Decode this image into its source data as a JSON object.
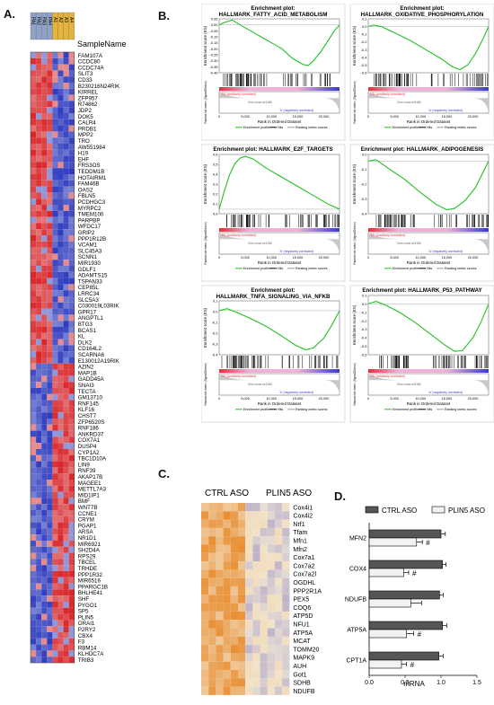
{
  "panels": {
    "a": "A.",
    "b": "B.",
    "c": "C.",
    "d": "D."
  },
  "heatmapA": {
    "header": "SampleName",
    "columns": [
      "PA1",
      "PA2",
      "PA3",
      "PA4",
      "A1",
      "A2",
      "A3",
      "A4"
    ],
    "colors": {
      "pa": "#8fa3c8",
      "a": "#e6b43a",
      "high": "#d9262a",
      "low": "#2f3cbf",
      "mid": "#f2f2f2"
    },
    "genes": [
      "FAM107A",
      "CCDC80",
      "CCDC74A",
      "SLIT3",
      "CD33",
      "B230216N24RIK",
      "KIRREL",
      "ZFP957",
      "R74862",
      "JDP2",
      "DOK5",
      "CALR4",
      "PRDB1",
      "MPP2",
      "TRO",
      "AW551984",
      "H19",
      "EHF",
      "FRS3OS",
      "TEDDM1B",
      "HOTAIRM1",
      "FAM46B",
      "OAS2",
      "FBLN5",
      "PCDHGC3",
      "MYRPC2",
      "TMEM100",
      "PARPBP",
      "WFDC17",
      "GRIP2",
      "PPP1R12B",
      "VCAM1",
      "SLC45A3",
      "SCNN1",
      "MIR1930",
      "GDLF1",
      "ADAMTS15",
      "TSPAN33",
      "CEP85L",
      "LRRC34",
      "SLC5A3",
      "C030019L03RIK",
      "GPR17",
      "ANGPTL1",
      "BTG3",
      "BCAS1",
      "KL",
      "DLK2",
      "CD164L2",
      "SCARNA6",
      "E130012A19RIK",
      "AZIN2",
      "MAP1B",
      "GADD45A",
      "SNAI3",
      "TECTA",
      "GM13710",
      "RNF145",
      "KLF16",
      "CHST7",
      "ZFP6520S",
      "RNF186",
      "ANKRD37",
      "COX7A1",
      "DUSP4",
      "CYP1A2",
      "TBC1D10A",
      "LIN9",
      "RNF39",
      "AKAP17B",
      "MAGEE1",
      "METTL7A3",
      "MID1IP1",
      "BMF",
      "WNT7B",
      "CCNE1",
      "CRYM",
      "PGAP1",
      "ARSA",
      "NR1D1",
      "MIR6921",
      "SH2D4A",
      "RPS29",
      "TBCEL",
      "TRHDE",
      "PPP1R32",
      "MIR6516",
      "PPARGC1B",
      "BHLHE41",
      "SHF",
      "PYGO1",
      "SP5",
      "PLIN5",
      "ORAI1",
      "P2RY2",
      "CBX4",
      "F3",
      "RBM14",
      "KLHDC7A",
      "TRIB3"
    ]
  },
  "gseaB": {
    "labels": {
      "es": "Enrichment score (ES)",
      "rank_metric": "Ranked list metric (Signal2Noise)",
      "xlabel": "Rank in Ordered Dataset",
      "pos": "'PA' (positively correlated)",
      "neg": "'A' (negatively correlated)",
      "zero": "Zero cross at 6186",
      "leg_profile": "Enrichment profile",
      "leg_hits": "Hits",
      "leg_rank": "Ranking metric scores",
      "xticks": [
        "0",
        "5,000",
        "10,000",
        "15,000",
        "20,000"
      ]
    },
    "colors": {
      "curve": "#22c022",
      "hits": "#000000",
      "pos": "#e0303a",
      "neg": "#3a3aca",
      "band": "#f0b0d8",
      "gray": "#c8c8c8"
    },
    "plots": [
      {
        "title": "Enrichment plot:",
        "subtitle": "HALLMARK_FATTY_ACID_METABOLISM",
        "ymin": -0.4,
        "ymax": 0.05,
        "ticks": [
          "0.05",
          "0.00",
          "-0.05",
          "-0.10",
          "-0.15",
          "-0.20",
          "-0.25",
          "-0.30",
          "-0.35",
          "-0.40"
        ],
        "curve": [
          [
            0,
            0
          ],
          [
            1000,
            0.02
          ],
          [
            2500,
            0.04
          ],
          [
            4000,
            0.0
          ],
          [
            6000,
            -0.05
          ],
          [
            8000,
            -0.1
          ],
          [
            10000,
            -0.15
          ],
          [
            12000,
            -0.2
          ],
          [
            14000,
            -0.28
          ],
          [
            16000,
            -0.33
          ],
          [
            17000,
            -0.34
          ],
          [
            18000,
            -0.3
          ],
          [
            19500,
            -0.22
          ],
          [
            21000,
            -0.12
          ],
          [
            22000,
            -0.05
          ],
          [
            23000,
            0
          ]
        ]
      },
      {
        "title": "Enrichment plot:",
        "subtitle": "HALLMARK_OXIDATIVE_PHOSPHORYLATION",
        "ymin": -0.6,
        "ymax": 0.1,
        "ticks": [
          "0.1",
          "0.0",
          "-0.1",
          "-0.2",
          "-0.3",
          "-0.4",
          "-0.5",
          "-0.6"
        ],
        "curve": [
          [
            0,
            0
          ],
          [
            1000,
            0.02
          ],
          [
            2500,
            0.0
          ],
          [
            5000,
            -0.08
          ],
          [
            8000,
            -0.18
          ],
          [
            11000,
            -0.3
          ],
          [
            14000,
            -0.42
          ],
          [
            16000,
            -0.52
          ],
          [
            17500,
            -0.56
          ],
          [
            19000,
            -0.5
          ],
          [
            20500,
            -0.35
          ],
          [
            22000,
            -0.15
          ],
          [
            23000,
            0
          ]
        ]
      },
      {
        "title": "Enrichment plot: HALLMARK_E2F_TARGETS",
        "subtitle": "",
        "ymin": -0.05,
        "ymax": 0.6,
        "ticks": [
          "0.6",
          "0.5",
          "0.4",
          "0.3",
          "0.2",
          "0.1",
          "0.0"
        ],
        "curve": [
          [
            0,
            0
          ],
          [
            1000,
            0.2
          ],
          [
            2000,
            0.38
          ],
          [
            3000,
            0.5
          ],
          [
            4000,
            0.56
          ],
          [
            5000,
            0.58
          ],
          [
            6500,
            0.55
          ],
          [
            9000,
            0.45
          ],
          [
            12000,
            0.35
          ],
          [
            15000,
            0.25
          ],
          [
            18000,
            0.15
          ],
          [
            21000,
            0.05
          ],
          [
            23000,
            0
          ]
        ]
      },
      {
        "title": "Enrichment plot: HALLMARK_ADIPOGENESIS",
        "subtitle": "",
        "ymin": -0.4,
        "ymax": 0.05,
        "ticks": [
          "0.0",
          "-0.1",
          "-0.2",
          "-0.3",
          "-0.4"
        ],
        "curve": [
          [
            0,
            0
          ],
          [
            1500,
            0.01
          ],
          [
            4000,
            -0.06
          ],
          [
            7000,
            -0.14
          ],
          [
            10000,
            -0.24
          ],
          [
            13000,
            -0.33
          ],
          [
            15000,
            -0.37
          ],
          [
            16500,
            -0.36
          ],
          [
            18500,
            -0.3
          ],
          [
            20500,
            -0.2
          ],
          [
            22000,
            -0.08
          ],
          [
            23000,
            0
          ]
        ]
      },
      {
        "title": "Enrichment plot:",
        "subtitle": "HALLMARK_TNFA_SIGNALING_VIA_NFKB",
        "ymin": -0.45,
        "ymax": 0.1,
        "ticks": [
          "0.1",
          "0.0",
          "-0.1",
          "-0.2",
          "-0.3",
          "-0.4"
        ],
        "curve": [
          [
            0,
            0
          ],
          [
            1500,
            0.02
          ],
          [
            3500,
            -0.02
          ],
          [
            6000,
            -0.08
          ],
          [
            9000,
            -0.16
          ],
          [
            12000,
            -0.26
          ],
          [
            14500,
            -0.35
          ],
          [
            16500,
            -0.4
          ],
          [
            18000,
            -0.38
          ],
          [
            20000,
            -0.28
          ],
          [
            21500,
            -0.15
          ],
          [
            23000,
            0
          ]
        ]
      },
      {
        "title": "Enrichment plot: HALLMARK_P53_PATHWAY",
        "subtitle": "",
        "ymin": -0.6,
        "ymax": 0.1,
        "ticks": [
          "0.1",
          "0.0",
          "-0.1",
          "-0.2",
          "-0.3",
          "-0.4",
          "-0.5",
          "-0.6"
        ],
        "curve": [
          [
            0,
            0
          ],
          [
            1500,
            0.03
          ],
          [
            3500,
            -0.02
          ],
          [
            6000,
            -0.1
          ],
          [
            9000,
            -0.22
          ],
          [
            12000,
            -0.36
          ],
          [
            14500,
            -0.48
          ],
          [
            16500,
            -0.56
          ],
          [
            18000,
            -0.55
          ],
          [
            20000,
            -0.4
          ],
          [
            21500,
            -0.22
          ],
          [
            23000,
            0
          ]
        ]
      }
    ]
  },
  "heatC": {
    "group1": "CTRL ASO",
    "group2": "PLIN5 ASO",
    "colors": {
      "high": "#e88a2a",
      "low": "#7a6ab8",
      "mid": "#f3ead6"
    },
    "genes": [
      "Cox4i1",
      "Cox4i2",
      "Nrf1",
      "Tfam",
      "Mfn1",
      "Mfn2",
      "Cox7a1",
      "Cox7a2",
      "Cox7a2l",
      "OGDHL",
      "PPP2R1A",
      "PEX5",
      "COQ6",
      "ATP5D",
      "NFU1",
      "ATP5A",
      "MCAT",
      "TOMM20",
      "MAPK9",
      "AUH",
      "Got1",
      "SDHB",
      "NDUFB"
    ]
  },
  "chart_data": {
    "type": "bar",
    "orientation": "horizontal",
    "categories": [
      "MFN2",
      "COX4",
      "NDUFB",
      "ATP5A",
      "CPT1A"
    ],
    "series": [
      {
        "name": "CTRL ASO",
        "values": [
          1.0,
          1.02,
          0.98,
          1.02,
          0.97
        ],
        "errors": [
          0.06,
          0.05,
          0.05,
          0.06,
          0.06
        ],
        "color": "#555555"
      },
      {
        "name": "PLIN5 ASO",
        "values": [
          0.66,
          0.48,
          0.58,
          0.52,
          0.45
        ],
        "errors": [
          0.08,
          0.07,
          0.15,
          0.1,
          0.07
        ],
        "color": "#f2f2f2"
      }
    ],
    "significance": [
      "#",
      "#",
      "",
      "#",
      "#"
    ],
    "xlabel": "mRNA",
    "xticks": [
      "0.0",
      "0.5",
      "1.0",
      "1.5"
    ],
    "xlim": [
      0,
      1.5
    ]
  }
}
